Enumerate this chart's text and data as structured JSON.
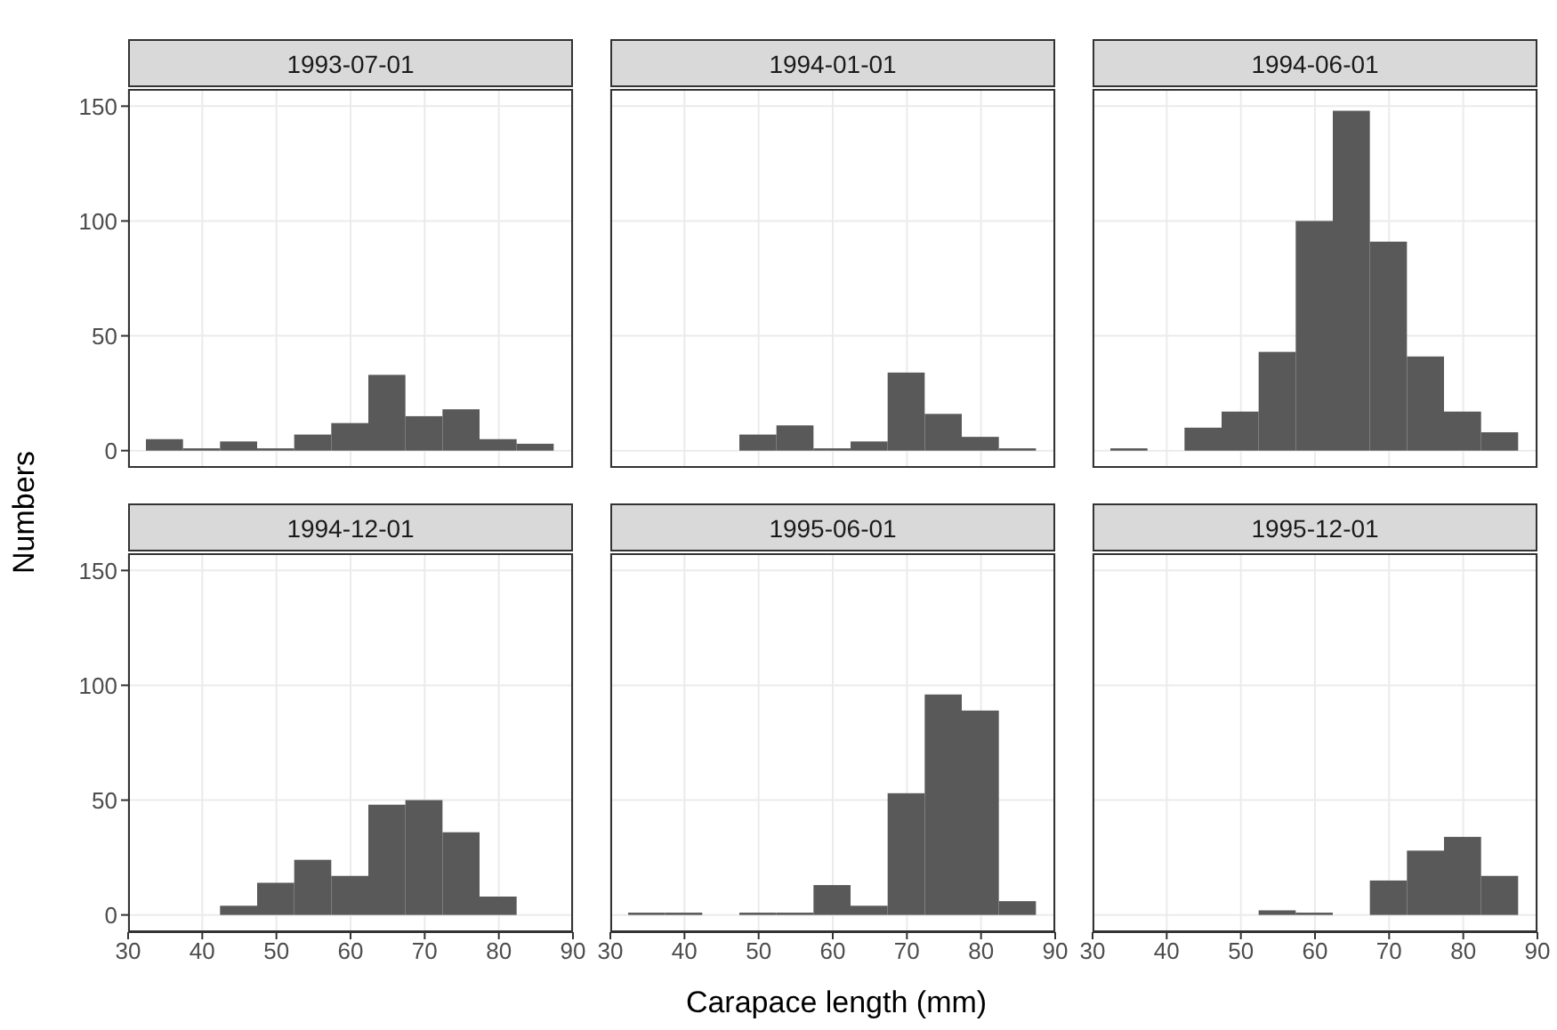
{
  "chart_data": [
    {
      "type": "histogram",
      "title": "1993-07-01",
      "ylabel": "Numbers",
      "bins": [
        32.5,
        37.5,
        42.5,
        47.5,
        52.5,
        57.5,
        62.5,
        67.5,
        72.5,
        77.5,
        82.5,
        87.5
      ],
      "values": [
        5,
        1,
        4,
        1,
        7,
        12,
        33,
        15,
        18,
        5,
        3
      ],
      "color": "#595959",
      "xlim": [
        30,
        90
      ],
      "xticks": [
        30,
        40,
        50,
        60,
        70,
        80,
        90
      ],
      "ylim": [
        -7.5,
        157.5
      ],
      "yticks": [
        0,
        50,
        100,
        150
      ],
      "grid": true,
      "tick_labels": "y"
    },
    {
      "type": "histogram",
      "title": "1994-01-01",
      "bins": [
        32.5,
        37.5,
        42.5,
        47.5,
        52.5,
        57.5,
        62.5,
        67.5,
        72.5,
        77.5,
        82.5,
        87.5
      ],
      "values": [
        0,
        0,
        0,
        7,
        11,
        1,
        4,
        34,
        16,
        6,
        1
      ],
      "color": "#595959",
      "xlim": [
        30,
        90
      ],
      "xticks": [
        30,
        40,
        50,
        60,
        70,
        80,
        90
      ],
      "ylim": [
        -7.5,
        157.5
      ],
      "yticks": [
        0,
        50,
        100,
        150
      ],
      "grid": true,
      "tick_labels": false
    },
    {
      "type": "histogram",
      "title": "1994-06-01",
      "bins": [
        32.5,
        37.5,
        42.5,
        47.5,
        52.5,
        57.5,
        62.5,
        67.5,
        72.5,
        77.5,
        82.5,
        87.5
      ],
      "values": [
        1,
        0,
        10,
        17,
        43,
        100,
        148,
        91,
        41,
        17,
        8
      ],
      "color": "#595959",
      "xlim": [
        30,
        90
      ],
      "xticks": [
        30,
        40,
        50,
        60,
        70,
        80,
        90
      ],
      "ylim": [
        -7.5,
        157.5
      ],
      "yticks": [
        0,
        50,
        100,
        150
      ],
      "grid": true,
      "tick_labels": false
    },
    {
      "type": "histogram",
      "title": "1994-12-01",
      "bins": [
        32.5,
        37.5,
        42.5,
        47.5,
        52.5,
        57.5,
        62.5,
        67.5,
        72.5,
        77.5,
        82.5,
        87.5
      ],
      "values": [
        0,
        0,
        4,
        14,
        24,
        17,
        48,
        50,
        36,
        8,
        0
      ],
      "color": "#595959",
      "xlim": [
        30,
        90
      ],
      "xticks": [
        30,
        40,
        50,
        60,
        70,
        80,
        90
      ],
      "ylim": [
        -7.5,
        157.5
      ],
      "yticks": [
        0,
        50,
        100,
        150
      ],
      "grid": true
    },
    {
      "type": "histogram",
      "title": "1995-06-01",
      "xlabel": "Carapace length (mm)",
      "bins": [
        32.5,
        37.5,
        42.5,
        47.5,
        52.5,
        57.5,
        62.5,
        67.5,
        72.5,
        77.5,
        82.5,
        87.5
      ],
      "values": [
        1,
        1,
        0,
        1,
        1,
        13,
        4,
        53,
        96,
        89,
        6
      ],
      "color": "#595959",
      "xlim": [
        30,
        90
      ],
      "xticks": [
        30,
        40,
        50,
        60,
        70,
        80,
        90
      ],
      "ylim": [
        -7.5,
        157.5
      ],
      "yticks": [
        0,
        50,
        100,
        150
      ],
      "grid": true,
      "tick_labels": "x"
    },
    {
      "type": "histogram",
      "title": "1995-12-01",
      "bins": [
        32.5,
        37.5,
        42.5,
        47.5,
        52.5,
        57.5,
        62.5,
        67.5,
        72.5,
        77.5,
        82.5,
        87.5
      ],
      "values": [
        0,
        0,
        0,
        0,
        2,
        1,
        0,
        15,
        28,
        34,
        17
      ],
      "color": "#595959",
      "xlim": [
        30,
        90
      ],
      "xticks": [
        30,
        40,
        50,
        60,
        70,
        80,
        90
      ],
      "ylim": [
        -7.5,
        157.5
      ],
      "yticks": [
        0,
        50,
        100,
        150
      ],
      "grid": true,
      "tick_labels": "x"
    }
  ]
}
